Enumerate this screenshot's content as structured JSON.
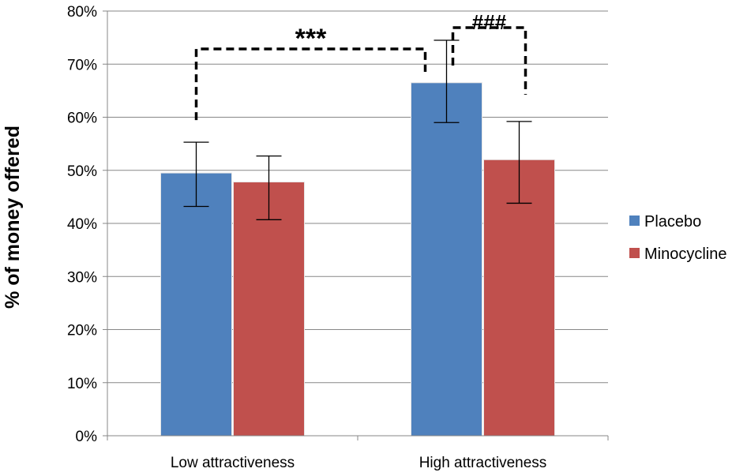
{
  "chart_data": {
    "type": "bar",
    "title": "",
    "xlabel": "",
    "ylabel": "% of money offered",
    "ylim": [
      0,
      80
    ],
    "yticks": [
      0,
      10,
      20,
      30,
      40,
      50,
      60,
      70,
      80
    ],
    "ytick_labels": [
      "0%",
      "10%",
      "20%",
      "30%",
      "40%",
      "50%",
      "60%",
      "70%",
      "80%"
    ],
    "categories": [
      "Low attractiveness",
      "High attractiveness"
    ],
    "series": [
      {
        "name": "Placebo",
        "color": "#4f81bd",
        "values": [
          49.5,
          66.5
        ],
        "error_low": [
          43.2,
          59.0
        ],
        "error_high": [
          55.3,
          74.5
        ]
      },
      {
        "name": "Minocycline",
        "color": "#c0504d",
        "values": [
          47.8,
          52.0
        ],
        "error_low": [
          40.7,
          43.8
        ],
        "error_high": [
          52.7,
          59.2
        ]
      }
    ],
    "grid": true,
    "legend_position": "right",
    "annotations": [
      {
        "text": "***",
        "between": [
          "Low attractiveness / Placebo",
          "High attractiveness / Placebo"
        ]
      },
      {
        "text": "###",
        "between": [
          "High attractiveness / Placebo",
          "High attractiveness / Minocycline"
        ]
      }
    ]
  }
}
